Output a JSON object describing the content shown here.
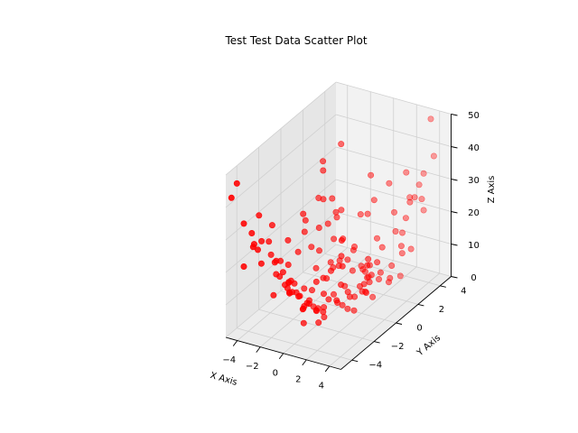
{
  "chart_data": {
    "type": "scatter",
    "title": "Test Test Data Scatter Plot",
    "xlabel": "X Axis",
    "ylabel": "Y Axis",
    "zlabel": "Z Axis",
    "xlim": [
      -5,
      5
    ],
    "ylim": [
      -5,
      5
    ],
    "zlim": [
      0,
      50
    ],
    "x_ticks": [
      "−4",
      "−2",
      "0",
      "2",
      "4"
    ],
    "y_ticks": [
      "−4",
      "−2",
      "0",
      "2",
      "4"
    ],
    "z_ticks": [
      "0",
      "10",
      "20",
      "30",
      "40",
      "50"
    ],
    "grid": true,
    "marker_color": "#ff0000",
    "pane_colors": [
      "#f2f2f2",
      "#e6e6e6",
      "#ececec"
    ],
    "points": [
      {
        "x": 2.6,
        "y": 2.9,
        "z": 3.8
      },
      {
        "x": -0.3,
        "y": 1.6,
        "z": 6.3
      },
      {
        "x": -1.5,
        "y": 2.4,
        "z": 6.2
      },
      {
        "x": 4.7,
        "y": -2.3,
        "z": 20.2
      },
      {
        "x": -4.9,
        "y": -1.0,
        "z": 14.1
      },
      {
        "x": -2.9,
        "y": -2.3,
        "z": 13.1
      },
      {
        "x": -1.4,
        "y": -0.8,
        "z": 1.0
      },
      {
        "x": -2.0,
        "y": -3.8,
        "z": 12.5
      },
      {
        "x": -2.1,
        "y": -1.8,
        "z": 10.3
      },
      {
        "x": 1.1,
        "y": -4.3,
        "z": 8.4
      },
      {
        "x": -4.1,
        "y": -4.3,
        "z": 20.7
      },
      {
        "x": 3.7,
        "y": 0.7,
        "z": 9.3
      },
      {
        "x": -3.9,
        "y": -0.5,
        "z": 18.1
      },
      {
        "x": -3.1,
        "y": 1.5,
        "z": 10.0
      },
      {
        "x": -1.4,
        "y": 4.4,
        "z": 26.6
      },
      {
        "x": -0.6,
        "y": 1.2,
        "z": 2.4
      },
      {
        "x": -3.2,
        "y": -4.4,
        "z": 27.9
      },
      {
        "x": 3.0,
        "y": 4.6,
        "z": 19.6
      },
      {
        "x": -4.1,
        "y": -4.3,
        "z": 33.9
      },
      {
        "x": -3.2,
        "y": 3.2,
        "z": 15.3
      },
      {
        "x": -1.7,
        "y": 0.4,
        "z": 6.1
      },
      {
        "x": -0.1,
        "y": -3.4,
        "z": 13.0
      },
      {
        "x": -1.4,
        "y": 1.5,
        "z": 7.0
      },
      {
        "x": -0.9,
        "y": -3.5,
        "z": 13.3
      },
      {
        "x": -0.5,
        "y": -4.1,
        "z": 17.0
      },
      {
        "x": -4.0,
        "y": -2.8,
        "z": 24.3
      },
      {
        "x": 2.7,
        "y": 4.5,
        "z": 27.4
      },
      {
        "x": -3.6,
        "y": 4.0,
        "z": 35.2
      },
      {
        "x": -0.9,
        "y": -1.7,
        "z": 6.0
      },
      {
        "x": 2.6,
        "y": -0.2,
        "z": 7.5
      },
      {
        "x": 3.2,
        "y": -0.9,
        "z": 10.4
      },
      {
        "x": 4.7,
        "y": -2.1,
        "z": 18.3
      },
      {
        "x": 1.5,
        "y": -4.8,
        "z": 14.5
      },
      {
        "x": 0.7,
        "y": 2.0,
        "z": 4.2
      },
      {
        "x": 2.1,
        "y": -4.0,
        "z": 8.7
      },
      {
        "x": 0.6,
        "y": 1.8,
        "z": 6.3
      },
      {
        "x": 2.5,
        "y": -4.0,
        "z": 12.4
      },
      {
        "x": 3.0,
        "y": -3.3,
        "z": 14.4
      },
      {
        "x": -2.0,
        "y": 2.2,
        "z": 6.0
      },
      {
        "x": -3.3,
        "y": -2.2,
        "z": 17.2
      },
      {
        "x": 0.1,
        "y": -0.2,
        "z": 2.0
      },
      {
        "x": 0.2,
        "y": -3.4,
        "z": 9.4
      },
      {
        "x": 3.6,
        "y": 4.9,
        "z": 36.0
      },
      {
        "x": -4.5,
        "y": 2.9,
        "z": 20.8
      },
      {
        "x": -3.6,
        "y": -1.5,
        "z": 14.9
      },
      {
        "x": 2.5,
        "y": -1.2,
        "z": 4.8
      },
      {
        "x": 2.2,
        "y": 3.5,
        "z": 15.0
      },
      {
        "x": -1.7,
        "y": 0.7,
        "z": 5.1
      },
      {
        "x": 4.0,
        "y": 4.2,
        "z": 49.8
      },
      {
        "x": 2.4,
        "y": -3.4,
        "z": 14.4
      },
      {
        "x": 1.4,
        "y": 0.0,
        "z": 4.5
      },
      {
        "x": 3.5,
        "y": -2.8,
        "z": 16.1
      },
      {
        "x": -4.8,
        "y": -1.3,
        "z": 19.1
      },
      {
        "x": -1.2,
        "y": -3.6,
        "z": 15.9
      },
      {
        "x": -1.1,
        "y": 3.8,
        "z": 16.7
      },
      {
        "x": -0.5,
        "y": -3.3,
        "z": 13.4
      },
      {
        "x": 4.1,
        "y": 2.2,
        "z": 30.0
      },
      {
        "x": -3.6,
        "y": 0.1,
        "z": 13.1
      },
      {
        "x": 1.4,
        "y": 3.6,
        "z": 20.2
      },
      {
        "x": 0.8,
        "y": 0.0,
        "z": 0.2
      },
      {
        "x": -0.9,
        "y": -3.5,
        "z": 13.6
      },
      {
        "x": -0.6,
        "y": -0.7,
        "z": 1.3
      },
      {
        "x": 0.1,
        "y": 4.5,
        "z": 25.3
      },
      {
        "x": -2.6,
        "y": -4.6,
        "z": 28.2
      },
      {
        "x": 4.3,
        "y": -1.5,
        "z": 18.4
      },
      {
        "x": -3.7,
        "y": -4.0,
        "z": 30.5
      },
      {
        "x": 1.8,
        "y": 3.3,
        "z": 15.6
      },
      {
        "x": 0.0,
        "y": -1.3,
        "z": 0.6
      },
      {
        "x": 3.5,
        "y": -1.5,
        "z": 12.5
      },
      {
        "x": -2.1,
        "y": -4.8,
        "z": 25.0
      },
      {
        "x": -3.8,
        "y": 2.6,
        "z": 22.0
      },
      {
        "x": 1.2,
        "y": -4.1,
        "z": 14.1
      },
      {
        "x": -3.3,
        "y": -4.2,
        "z": 28.1
      },
      {
        "x": -3.8,
        "y": 0.9,
        "z": 16.8
      },
      {
        "x": 2.2,
        "y": -4.3,
        "z": 22.2
      },
      {
        "x": -4.6,
        "y": -2.4,
        "z": 30.5
      },
      {
        "x": -2.3,
        "y": 1.7,
        "z": 6.6
      },
      {
        "x": 2.3,
        "y": 0.7,
        "z": 3.3
      },
      {
        "x": 3.0,
        "y": -2.1,
        "z": 12.1
      },
      {
        "x": -4.2,
        "y": 1.4,
        "z": 18.5
      },
      {
        "x": 3.0,
        "y": -0.8,
        "z": 12.3
      },
      {
        "x": 4.1,
        "y": 2.3,
        "z": 15.3
      },
      {
        "x": -0.8,
        "y": 2.2,
        "z": 10.4
      },
      {
        "x": -3.3,
        "y": -2.2,
        "z": 13.1
      },
      {
        "x": 4.7,
        "y": 0.8,
        "z": 21.1
      },
      {
        "x": -4.7,
        "y": -4.8,
        "z": 42.7
      },
      {
        "x": 1.5,
        "y": 4.9,
        "z": 21.2
      },
      {
        "x": -0.6,
        "y": 2.7,
        "z": 4.3
      },
      {
        "x": 3.9,
        "y": 0.6,
        "z": 11.0
      },
      {
        "x": 0.4,
        "y": 1.8,
        "z": 6.8
      },
      {
        "x": 2.7,
        "y": -3.5,
        "z": 23.8
      },
      {
        "x": 3.6,
        "y": 3.8,
        "z": 25.9
      },
      {
        "x": -2.4,
        "y": -0.6,
        "z": 5.0
      },
      {
        "x": 3.7,
        "y": -3.6,
        "z": 29.6
      },
      {
        "x": -2.9,
        "y": 1.0,
        "z": 6.2
      },
      {
        "x": -4.2,
        "y": 3.0,
        "z": 29.3
      },
      {
        "x": -2.7,
        "y": 2.4,
        "z": 11.4
      },
      {
        "x": -3.7,
        "y": 3.3,
        "z": 20.3
      },
      {
        "x": 1.2,
        "y": 4.9,
        "z": 28.6
      },
      {
        "x": 4.7,
        "y": -1.4,
        "z": 22.4
      },
      {
        "x": 1.6,
        "y": -3.0,
        "z": 14.2
      },
      {
        "x": -1.3,
        "y": 4.6,
        "z": 18.5
      },
      {
        "x": -2.8,
        "y": 2.7,
        "z": 18.7
      },
      {
        "x": 3.0,
        "y": 1.7,
        "z": 10.8
      },
      {
        "x": -2.4,
        "y": -2.0,
        "z": 11.0
      },
      {
        "x": -1.9,
        "y": 4.0,
        "z": 15.2
      },
      {
        "x": 0.9,
        "y": 1.9,
        "z": 8.3
      },
      {
        "x": 2.9,
        "y": 4.7,
        "z": 30.5
      },
      {
        "x": -3.1,
        "y": 3.5,
        "z": 16.8
      },
      {
        "x": 3.0,
        "y": -2.9,
        "z": 18.1
      },
      {
        "x": 0.0,
        "y": -4.2,
        "z": 16.6
      },
      {
        "x": -4.8,
        "y": -1.0,
        "z": 23.3
      },
      {
        "x": -2.6,
        "y": -1.8,
        "z": 10.0
      },
      {
        "x": -1.0,
        "y": 2.5,
        "z": 10.4
      },
      {
        "x": -0.6,
        "y": -4.4,
        "z": 22.7
      },
      {
        "x": -2.0,
        "y": 1.6,
        "z": 5.6
      },
      {
        "x": -0.5,
        "y": -1.5,
        "z": 2.8
      },
      {
        "x": 4.5,
        "y": -4.4,
        "z": 37.5
      },
      {
        "x": 1.5,
        "y": 2.4,
        "z": 13.0
      },
      {
        "x": 3.7,
        "y": -3.5,
        "z": 26.2
      },
      {
        "x": -3.5,
        "y": 1.9,
        "z": 15.5
      },
      {
        "x": -1.2,
        "y": -0.6,
        "z": 0.1
      },
      {
        "x": -4.8,
        "y": -4.2,
        "z": 45.3
      },
      {
        "x": -0.6,
        "y": 0.2,
        "z": 2.7
      },
      {
        "x": -2.2,
        "y": -0.1,
        "z": 3.3
      },
      {
        "x": 4.8,
        "y": -2.4,
        "z": 24.4
      },
      {
        "x": -2.1,
        "y": 2.6,
        "z": 11.5
      },
      {
        "x": 2.7,
        "y": 1.0,
        "z": 10.4
      },
      {
        "x": 3.3,
        "y": -1.5,
        "z": 13.9
      },
      {
        "x": -4.4,
        "y": 1.4,
        "z": 20.3
      },
      {
        "x": 4.5,
        "y": -2.0,
        "z": 24.9
      },
      {
        "x": 1.5,
        "y": 2.1,
        "z": 4.0
      },
      {
        "x": -3.5,
        "y": 1.2,
        "z": 11.6
      },
      {
        "x": 1.3,
        "y": -1.0,
        "z": 4.7
      },
      {
        "x": -0.2,
        "y": -4.1,
        "z": 19.6
      },
      {
        "x": 4.0,
        "y": 1.6,
        "z": 15.9
      },
      {
        "x": 0.1,
        "y": 3.4,
        "z": 11.5
      },
      {
        "x": -3.2,
        "y": 2.4,
        "z": 15.6
      },
      {
        "x": 0.1,
        "y": -2.1,
        "z": 4.9
      },
      {
        "x": -0.2,
        "y": -2.9,
        "z": 8.3
      },
      {
        "x": 2.6,
        "y": 3.4,
        "z": 20.2
      },
      {
        "x": -3.4,
        "y": -1.0,
        "z": 12.5
      },
      {
        "x": -3.8,
        "y": -1.8,
        "z": 15.1
      },
      {
        "x": 0.9,
        "y": -3.6,
        "z": 12.2
      },
      {
        "x": -0.5,
        "y": -3.1,
        "z": 11.6
      },
      {
        "x": -4.5,
        "y": 3.3,
        "z": 31.0
      },
      {
        "x": 2.6,
        "y": 4.2,
        "z": 24.3
      }
    ]
  }
}
